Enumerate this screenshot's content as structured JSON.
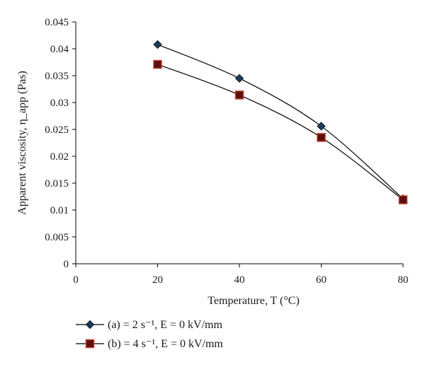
{
  "chart_data": {
    "type": "line",
    "title": "",
    "xlabel": "Temperature, T (°C)",
    "ylabel": "Apparent viscosity, η_app (Pas)",
    "x": [
      20,
      40,
      60,
      80
    ],
    "xlim": [
      0,
      80
    ],
    "ylim": [
      0,
      0.045
    ],
    "x_ticks": [
      "0",
      "20",
      "40",
      "60",
      "80"
    ],
    "y_ticks": [
      "0",
      "0.005",
      "0.01",
      "0.015",
      "0.02",
      "0.025",
      "0.03",
      "0.035",
      "0.04",
      "0.045"
    ],
    "grid": false,
    "legend_position": "bottom-left",
    "series": [
      {
        "name": "(a) = 2 s⁻¹, E = 0 kV/mm",
        "marker": "diamond",
        "marker_fill": "#1f3a5a",
        "line_color": "#000000",
        "values": [
          0.0408,
          0.0345,
          0.0256,
          0.0121
        ]
      },
      {
        "name": "(b) = 4 s⁻¹, E = 0 kV/mm",
        "marker": "square",
        "marker_fill": "#5a0f0f",
        "marker_edge": "#c0392b",
        "line_color": "#000000",
        "values": [
          0.0371,
          0.0314,
          0.0235,
          0.0119
        ]
      }
    ]
  }
}
